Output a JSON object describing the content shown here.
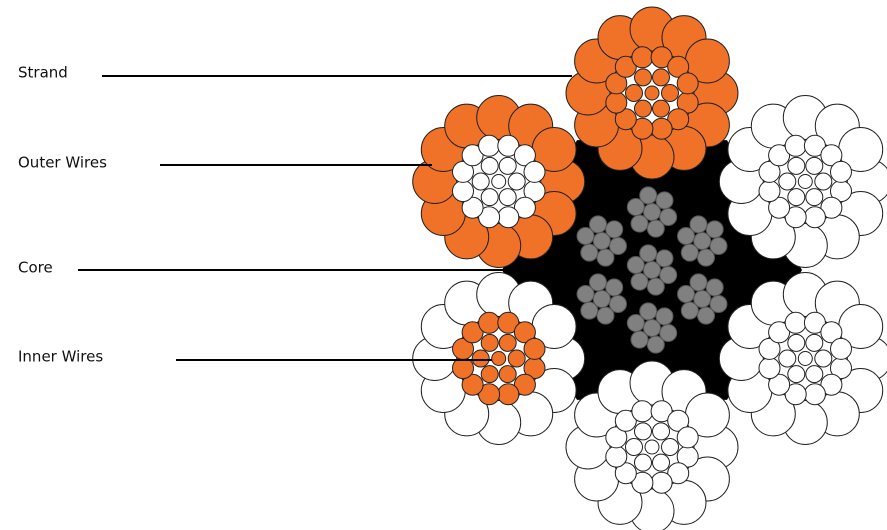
{
  "labels": [
    "Strand",
    "Outer Wires",
    "Core",
    "Inner Wires"
  ]
}
